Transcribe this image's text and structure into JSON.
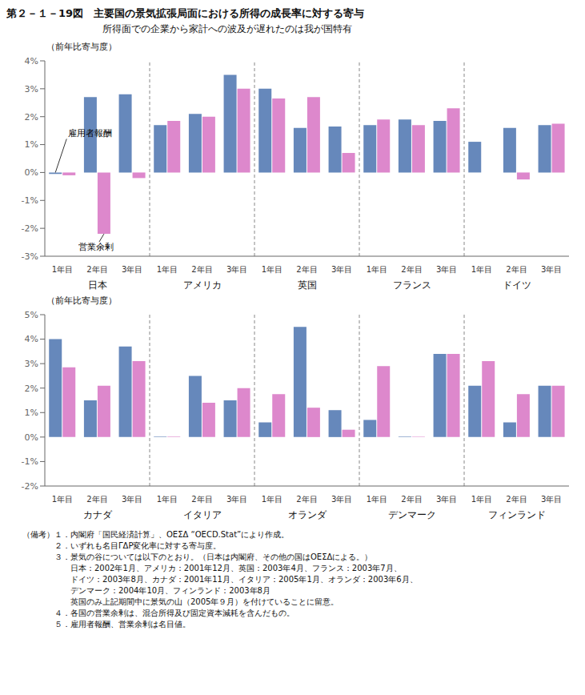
{
  "title": "第２－１－19図　主要国の景気拡張局面における所得の成長率に対する寄与",
  "subtitle": "所得面での企業から家計への波及が遅れたのは我が国特有",
  "footnote": [
    "（備考）１．内閣府「国民経済計算」、ΟΕΣΔ “OECD.Stat”により作成。",
    "　　　　２．いずれも名目ΓΔΡ変化率に対する寄与度。",
    "　　　　３．景気の谷については以下のとおり。（日本は内閣府、その他の国はΟΕΣΔによる。）",
    "　　　　　　日本：2002年1月、アメリカ：2001年12月、英国：2003年4月、フランス：2003年7月、",
    "　　　　　　ドイツ：2003年8月、カナダ：2001年11月、イタリア：2005年1月、オランダ：2003年6月、",
    "　　　　　　デンマーク：2004年10月、フィンランド：2003年8月",
    "　　　　　　英国のみ上記期間中に景気の山（2005年９月）を付けていることに留意。",
    "　　　　４．各国の営業余剰は、混合所得及び固定資本減耗を含んだもの。",
    "　　　　５．雇用者報酬、営業余剰は名目値。"
  ],
  "chart_data": [
    {
      "type": "bar",
      "ylabel": "（前年比寄与度）",
      "groups": [
        "日本",
        "アメリカ",
        "英国",
        "フランス",
        "ドイツ"
      ],
      "categories": [
        "1年目",
        "2年目",
        "3年目",
        "1年目",
        "2年目",
        "3年目",
        "1年目",
        "2年目",
        "3年目",
        "1年目",
        "2年目",
        "3年目",
        "1年目",
        "2年目",
        "3年目"
      ],
      "series": [
        {
          "name": "雇用者報酬",
          "color": "#6688BB",
          "values": [
            -0.05,
            2.7,
            2.8,
            1.7,
            2.1,
            3.5,
            3.0,
            1.6,
            1.65,
            1.7,
            1.9,
            1.85,
            1.1,
            1.6,
            1.7
          ]
        },
        {
          "name": "営業余剰",
          "color": "#DD88CC",
          "values": [
            -0.1,
            -2.2,
            -0.2,
            1.85,
            2.0,
            3.0,
            2.65,
            2.7,
            0.7,
            1.9,
            1.7,
            2.3,
            0.0,
            -0.25,
            1.75
          ]
        }
      ],
      "ylim": [
        -3,
        4
      ],
      "yticks": [
        {
          "value": -3,
          "label": "-3%"
        },
        {
          "value": -2,
          "label": "-2%"
        },
        {
          "value": -1,
          "label": "-1%"
        },
        {
          "value": 0,
          "label": "0%"
        },
        {
          "value": 1,
          "label": "1%"
        },
        {
          "value": 2,
          "label": "2%"
        },
        {
          "value": 3,
          "label": "3%"
        },
        {
          "value": 4,
          "label": "4%"
        }
      ],
      "grid": false
    },
    {
      "type": "bar",
      "ylabel": "（前年比寄与度）",
      "groups": [
        "カナダ",
        "イタリア",
        "オランダ",
        "デンマーク",
        "フィンランド"
      ],
      "categories": [
        "1年目",
        "2年目",
        "3年目",
        "1年目",
        "2年目",
        "3年目",
        "1年目",
        "2年目",
        "3年目",
        "1年目",
        "2年目",
        "3年目",
        "1年目",
        "2年目",
        "3年目"
      ],
      "series": [
        {
          "color": "#6688BB",
          "values": [
            4.0,
            1.5,
            3.7,
            0.02,
            2.5,
            1.5,
            0.6,
            4.5,
            1.1,
            0.7,
            0.02,
            3.4,
            2.1,
            0.6,
            2.1
          ]
        },
        {
          "color": "#DD88CC",
          "values": [
            2.85,
            2.1,
            3.1,
            0.02,
            1.4,
            2.0,
            1.75,
            1.2,
            0.3,
            2.9,
            0.02,
            3.4,
            3.1,
            1.75,
            2.1
          ]
        }
      ],
      "ylim": [
        -2,
        5
      ],
      "yticks": [
        {
          "value": -2,
          "label": "-2%"
        },
        {
          "value": -1,
          "label": "-1%"
        },
        {
          "value": 0,
          "label": "0%"
        },
        {
          "value": 1,
          "label": "1%"
        },
        {
          "value": 2,
          "label": "2%"
        },
        {
          "value": 3,
          "label": "3%"
        },
        {
          "value": 4,
          "label": "4%"
        },
        {
          "value": 5,
          "label": "5%"
        }
      ],
      "grid": false
    }
  ]
}
